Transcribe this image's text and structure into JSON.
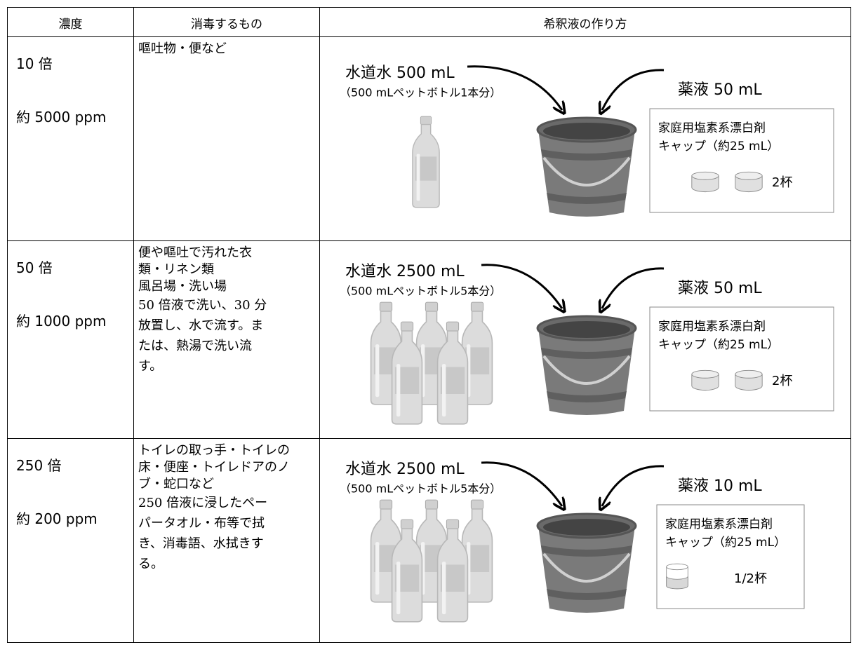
{
  "table": {
    "headers": [
      "濃度",
      "消毒するもの",
      "希釈液の作り方"
    ],
    "rows": [
      {
        "dilution": "10 倍",
        "concentration": "約 5000 ppm",
        "targets": [
          "嘔吐物・便など"
        ],
        "recipe": {
          "water": "水道水 500 mL",
          "water_note": "（500 mLペットボトル1本分）",
          "chemical": "薬液 50 mL",
          "product": "家庭用塩素系漂白剤",
          "cap": "キャップ（約25 mL）",
          "amount": "2杯"
        }
      },
      {
        "dilution": "50 倍",
        "concentration": "約 1000 ppm",
        "targets": [
          "便や嘔吐で汚れた衣",
          "類・リネン類",
          "風呂場・洗い場"
        ],
        "method": [
          "50 倍液で洗い、30 分",
          "放置し、水で流す。ま",
          "たは、熱湯で洗い流",
          "す。"
        ],
        "recipe": {
          "water": "水道水 2500 mL",
          "water_note": "（500 mLペットボトル5本分）",
          "chemical": "薬液 50 mL",
          "product": "家庭用塩素系漂白剤",
          "cap": "キャップ（約25 mL）",
          "amount": "2杯"
        }
      },
      {
        "dilution": "250 倍",
        "concentration": "約 200 ppm",
        "targets": [
          "トイレの取っ手・トイレの",
          "床・便座・トイレドアのノ",
          "ブ・蛇口など"
        ],
        "method": [
          "250 倍液に浸したペー",
          "パータオル・布等で拭",
          "き、消毒語、水拭きす",
          "る。"
        ],
        "recipe": {
          "water": "水道水 2500 mL",
          "water_note": "（500 mLペットボトル5本分）",
          "chemical": "薬液 10 mL",
          "product": "家庭用塩素系漂白剤",
          "cap": "キャップ（約25 mL）",
          "amount": "1/2杯"
        }
      }
    ]
  }
}
